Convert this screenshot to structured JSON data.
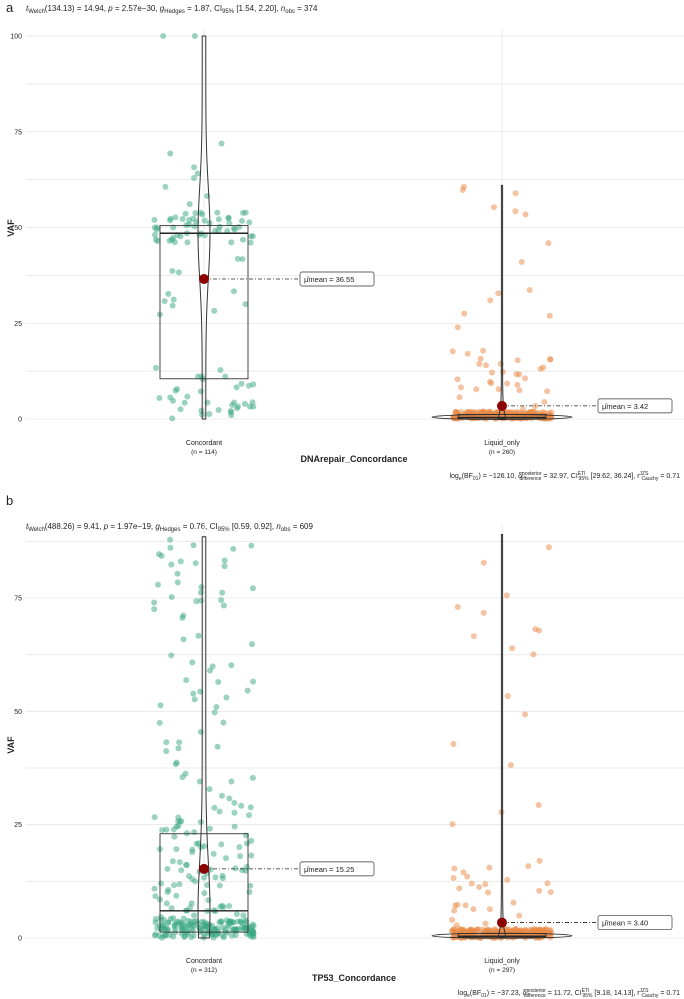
{
  "colors": {
    "concordant": "#3aa882",
    "liquid": "#e98a45",
    "mean": "#8b0000",
    "grid": "#e6e6e6"
  },
  "chart_data": [
    {
      "type": "violin-box-scatter",
      "panel_label": "a",
      "stats_text": "t_Welch(134.13) = 14.94, p = 2.57e−30, g_Hedges = 1.87, CI95% [1.54, 2.20], n_obs = 374",
      "stats_parts": {
        "prefix": "t",
        "prefix_sub": "Welch",
        "stat": "(134.13) = 14.94, ",
        "p_label": "p",
        "p_value": " = 2.57e−30, ",
        "g_label": "g",
        "g_sub": "Hedges",
        "g_value": " = 1.87, CI",
        "ci_sub": "95%",
        "ci_value": " [1.54, 2.20], ",
        "n_label": "n",
        "n_sub": "obs",
        "n_value": " = 374"
      },
      "xlabel": "DNArepair_Concordance",
      "ylabel": "VAF",
      "ylim": [
        0,
        100
      ],
      "yticks": [
        0,
        25,
        50,
        75,
        100
      ],
      "categories": [
        {
          "name": "Concordant",
          "n_label": "(n = 114)",
          "mean_label": "μ̂mean = 36.55",
          "mean": 36.55,
          "median": 48.5,
          "q1": 10.5,
          "q3": 50.5,
          "min": 0,
          "max": 100
        },
        {
          "name": "Liquid_only",
          "n_label": "(n = 260)",
          "mean_label": "μ̂mean = 3.42",
          "mean": 3.42,
          "median": 0.4,
          "q1": 0.2,
          "q3": 1.2,
          "min": 0,
          "max": 61
        }
      ],
      "bf_text": "logₑ(BF01) = −126.10, δ̂posterior difference = 32.97, CI95% ETI [29.62, 36.24], r Cauchy JZS = 0.71",
      "bf_parts": {
        "a": "log",
        "a_sub": "e",
        "b": "(BF",
        "b_sub": "01",
        "c": ") = −126.10, δ̂",
        "c_sup": "posterior",
        "c_sub": "difference",
        "d": " = 32.97, CI",
        "d_sup": "ETI",
        "d_sub": "95%",
        "e": " [29.62, 36.24], r",
        "e_sup": "JZS",
        "e_sub": "Cauchy",
        "f": " = 0.71"
      }
    },
    {
      "type": "violin-box-scatter",
      "panel_label": "b",
      "stats_text": "t_Welch(488.26) = 9.41, p = 1.97e−19, g_Hedges = 0.76, CI95% [0.59, 0.92], n_obs = 609",
      "stats_parts": {
        "prefix": "t",
        "prefix_sub": "Welch",
        "stat": "(488.26) = 9.41, ",
        "p_label": "p",
        "p_value": " = 1.97e−19, ",
        "g_label": "g",
        "g_sub": "Hedges",
        "g_value": " = 0.76, CI",
        "ci_sub": "95%",
        "ci_value": " [0.59, 0.92], ",
        "n_label": "n",
        "n_sub": "obs",
        "n_value": " = 609"
      },
      "xlabel": "TP53_Concordance",
      "ylabel": "VAF",
      "ylim": [
        0,
        90
      ],
      "yticks": [
        0,
        25,
        50,
        75
      ],
      "categories": [
        {
          "name": "Concordant",
          "n_label": "(n = 312)",
          "mean_label": "μ̂mean = 15.25",
          "mean": 15.25,
          "median": 6,
          "q1": 1.3,
          "q3": 23,
          "min": 0,
          "max": 88.5
        },
        {
          "name": "Liquid_only",
          "n_label": "(n = 297)",
          "mean_label": "μ̂mean = 3.40",
          "mean": 3.4,
          "median": 0.4,
          "q1": 0.2,
          "q3": 1.0,
          "min": 0,
          "max": 89
        }
      ],
      "bf_text": "logₑ(BF01) = −37.23, δ̂posterior difference = 11.72, CI95% ETI [9.18, 14.13], r Cauchy JZS = 0.71",
      "bf_parts": {
        "a": "log",
        "a_sub": "e",
        "b": "(BF",
        "b_sub": "01",
        "c": ") = −37.23, δ̂",
        "c_sup": "posterior",
        "c_sub": "difference",
        "d": " = 11.72, CI",
        "d_sup": "ETI",
        "d_sub": "95%",
        "e": " [9.18, 14.13], r",
        "e_sup": "JZS",
        "e_sub": "Cauchy",
        "f": " = 0.71"
      }
    }
  ]
}
